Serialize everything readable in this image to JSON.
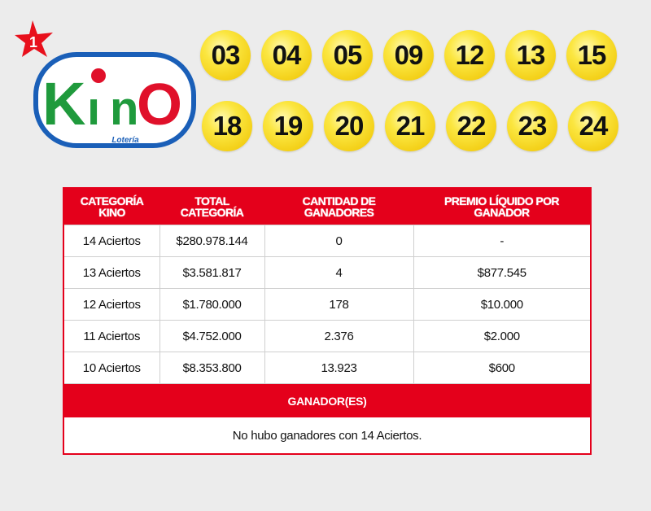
{
  "logo": {
    "badge": "1",
    "brand": "KinO",
    "sub": "Lotería"
  },
  "numbers": [
    "03",
    "04",
    "05",
    "09",
    "12",
    "13",
    "15",
    "18",
    "19",
    "20",
    "21",
    "22",
    "23",
    "24"
  ],
  "table": {
    "headers": [
      "CATEGORÍA KINO",
      "TOTAL CATEGORÍA",
      "CANTIDAD DE GANADORES",
      "PREMIO LÍQUIDO POR GANADOR"
    ],
    "rows": [
      [
        "14 Aciertos",
        "$280.978.144",
        "0",
        "-"
      ],
      [
        "13 Aciertos",
        "$3.581.817",
        "4",
        "$877.545"
      ],
      [
        "12 Aciertos",
        "$1.780.000",
        "178",
        "$10.000"
      ],
      [
        "11 Aciertos",
        "$4.752.000",
        "2.376",
        "$2.000"
      ],
      [
        "10 Aciertos",
        "$8.353.800",
        "13.923",
        "$600"
      ]
    ],
    "winners_title": "GANADOR(ES)",
    "winners_message": "No hubo ganadores con 14 Aciertos."
  },
  "colors": {
    "accent": "#e4001b",
    "ball": "#f3cf16"
  }
}
